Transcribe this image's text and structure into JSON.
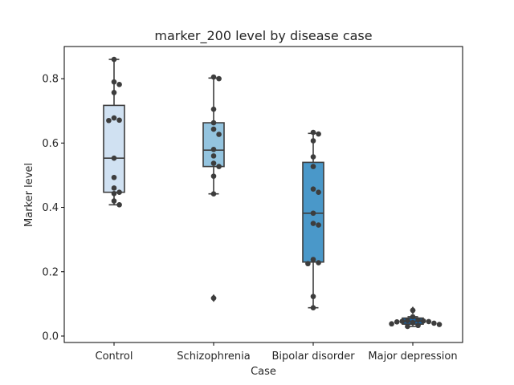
{
  "chart_data": {
    "type": "box",
    "title": "marker_200 level by disease case",
    "xlabel": "Case",
    "ylabel": "Marker level",
    "categories": [
      "Control",
      "Schizophrenia",
      "Bipolar disorder",
      "Major depression"
    ],
    "ylim": [
      -0.02,
      0.9
    ],
    "yticks": [
      0.0,
      0.2,
      0.4,
      0.6,
      0.8
    ],
    "ytick_labels": [
      "0.0",
      "0.2",
      "0.4",
      "0.6",
      "0.8"
    ],
    "grid": false,
    "box_colors": [
      "#d0e1f2",
      "#94c4df",
      "#4a98c9",
      "#1764ab"
    ],
    "box_stats": [
      {
        "q1": 0.447,
        "median": 0.553,
        "q3": 0.717,
        "whisker_low": 0.408,
        "whisker_high": 0.86,
        "outliers": []
      },
      {
        "q1": 0.527,
        "median": 0.578,
        "q3": 0.663,
        "whisker_low": 0.442,
        "whisker_high": 0.802,
        "outliers": [
          0.118
        ]
      },
      {
        "q1": 0.23,
        "median": 0.382,
        "q3": 0.54,
        "whisker_low": 0.088,
        "whisker_high": 0.63,
        "outliers": []
      },
      {
        "q1": 0.037,
        "median": 0.046,
        "q3": 0.056,
        "whisker_low": 0.03,
        "whisker_high": 0.06,
        "outliers": [
          0.08
        ]
      }
    ],
    "points": [
      [
        0.86,
        0.79,
        0.782,
        0.757,
        0.678,
        0.671,
        0.67,
        0.553,
        0.493,
        0.46,
        0.447,
        0.443,
        0.42,
        0.408
      ],
      [
        0.805,
        0.8,
        0.705,
        0.663,
        0.643,
        0.627,
        0.58,
        0.56,
        0.537,
        0.527,
        0.497,
        0.442,
        0.118
      ],
      [
        0.633,
        0.628,
        0.607,
        0.557,
        0.527,
        0.457,
        0.447,
        0.382,
        0.35,
        0.345,
        0.238,
        0.228,
        0.225,
        0.123,
        0.088
      ],
      [
        0.08,
        0.06,
        0.05,
        0.048,
        0.047,
        0.046,
        0.045,
        0.044,
        0.042,
        0.04,
        0.038,
        0.036,
        0.033,
        0.03
      ]
    ]
  }
}
